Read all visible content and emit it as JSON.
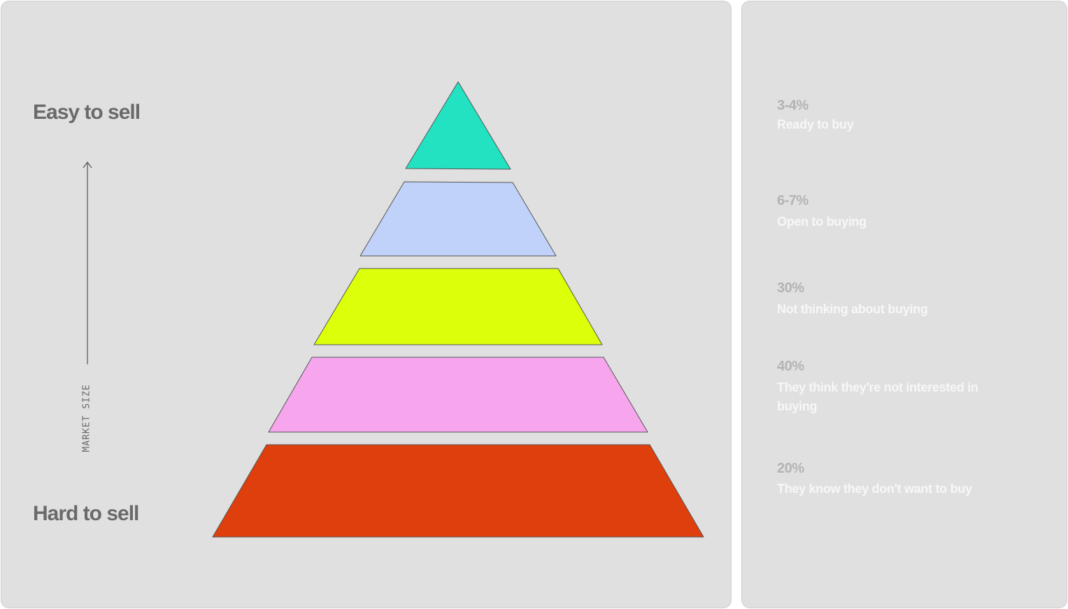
{
  "left_panel": {
    "top_label": "Easy to sell",
    "bottom_label": "Hard to sell",
    "axis_label": "MARKET SIZE"
  },
  "pyramid": {
    "tiers": [
      {
        "percent": "3-4%",
        "description": "Ready to buy",
        "color": "#22e2c2"
      },
      {
        "percent": "6-7%",
        "description": "Open to buying",
        "color": "#c0d2f9"
      },
      {
        "percent": "30%",
        "description": "Not thinking about buying",
        "color": "#dcff0a"
      },
      {
        "percent": "40%",
        "description": "They think they're not interested in buying",
        "color": "#f7a6ee"
      },
      {
        "percent": "20%",
        "description": "They know they don't want to buy",
        "color": "#de3f0c"
      }
    ]
  }
}
